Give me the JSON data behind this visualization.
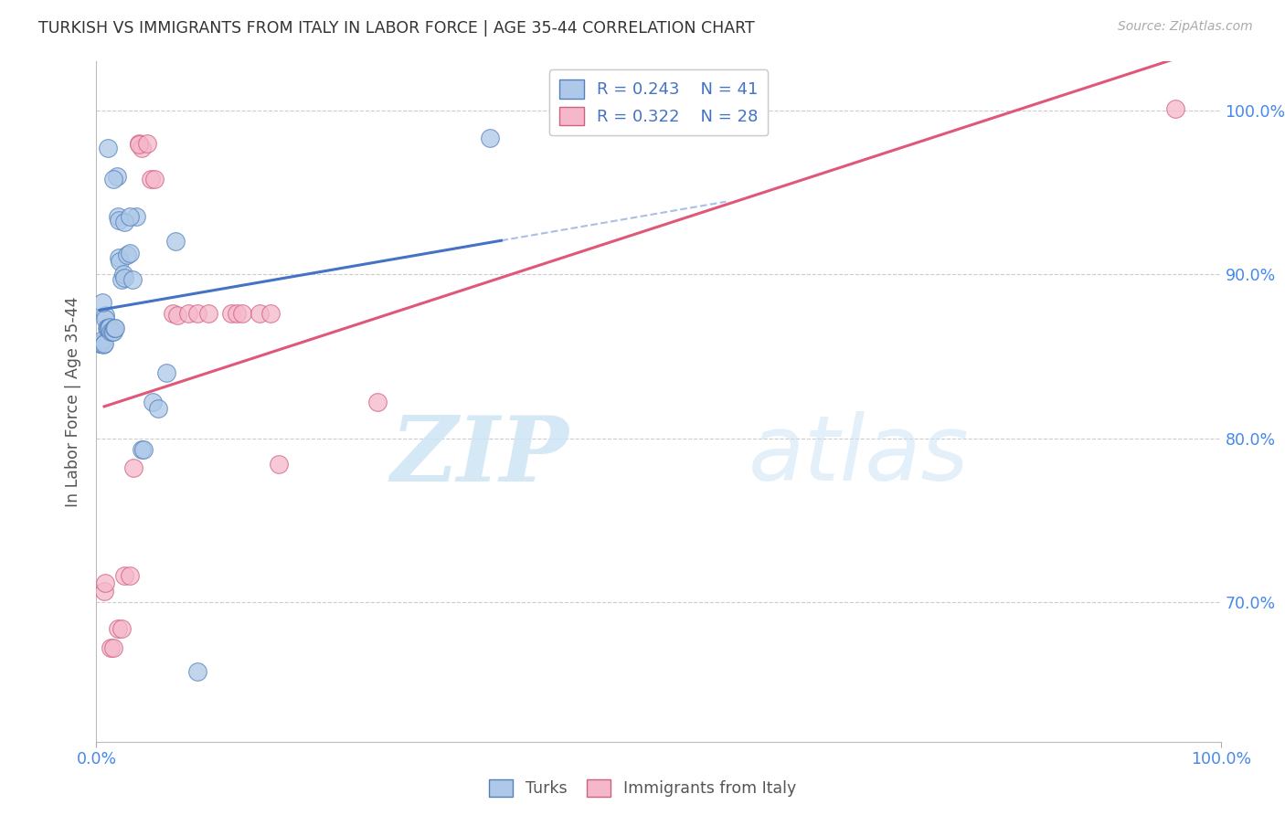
{
  "title": "TURKISH VS IMMIGRANTS FROM ITALY IN LABOR FORCE | AGE 35-44 CORRELATION CHART",
  "source": "Source: ZipAtlas.com",
  "ylabel": "In Labor Force | Age 35-44",
  "xlim": [
    0.0,
    1.0
  ],
  "ylim": [
    0.615,
    1.03
  ],
  "xtick_labels": [
    "0.0%",
    "100.0%"
  ],
  "xtick_positions": [
    0.0,
    1.0
  ],
  "ytick_labels": [
    "70.0%",
    "80.0%",
    "90.0%",
    "100.0%"
  ],
  "ytick_positions": [
    0.7,
    0.8,
    0.9,
    1.0
  ],
  "legend_r1": "0.243",
  "legend_n1": "41",
  "legend_r2": "0.322",
  "legend_n2": "28",
  "color_turks_fill": "#adc8e8",
  "color_turks_edge": "#5580bb",
  "color_italy_fill": "#f5b8ca",
  "color_italy_edge": "#d06080",
  "color_line_turks": "#4472c4",
  "color_line_italy": "#e05878",
  "color_title": "#333333",
  "color_source": "#aaaaaa",
  "color_tick": "#4488ee",
  "watermark_zip": "ZIP",
  "watermark_atlas": "atlas",
  "turks_x": [
    0.003,
    0.004,
    0.005,
    0.006,
    0.007,
    0.008,
    0.008,
    0.009,
    0.01,
    0.011,
    0.012,
    0.013,
    0.014,
    0.015,
    0.016,
    0.017,
    0.018,
    0.019,
    0.02,
    0.021,
    0.022,
    0.024,
    0.025,
    0.027,
    0.03,
    0.032,
    0.035,
    0.04,
    0.042,
    0.05,
    0.055,
    0.062,
    0.07,
    0.01,
    0.015,
    0.02,
    0.025,
    0.03,
    0.35,
    0.09,
    0.005
  ],
  "turks_y": [
    0.858,
    0.858,
    0.86,
    0.857,
    0.858,
    0.875,
    0.873,
    0.867,
    0.867,
    0.867,
    0.868,
    0.865,
    0.865,
    0.865,
    0.867,
    0.867,
    0.96,
    0.935,
    0.91,
    0.908,
    0.897,
    0.9,
    0.898,
    0.912,
    0.913,
    0.897,
    0.935,
    0.793,
    0.793,
    0.822,
    0.818,
    0.84,
    0.92,
    0.977,
    0.958,
    0.933,
    0.932,
    0.935,
    0.983,
    0.658,
    0.883
  ],
  "italy_x": [
    0.007,
    0.008,
    0.013,
    0.015,
    0.019,
    0.022,
    0.025,
    0.03,
    0.033,
    0.038,
    0.04,
    0.048,
    0.068,
    0.072,
    0.082,
    0.09,
    0.1,
    0.12,
    0.125,
    0.13,
    0.145,
    0.155,
    0.162,
    0.25,
    0.038,
    0.045,
    0.052,
    0.96
  ],
  "italy_y": [
    0.707,
    0.712,
    0.672,
    0.672,
    0.684,
    0.684,
    0.716,
    0.716,
    0.782,
    0.98,
    0.977,
    0.958,
    0.876,
    0.875,
    0.876,
    0.876,
    0.876,
    0.876,
    0.876,
    0.876,
    0.876,
    0.876,
    0.784,
    0.822,
    0.979,
    0.98,
    0.958,
    1.001
  ]
}
